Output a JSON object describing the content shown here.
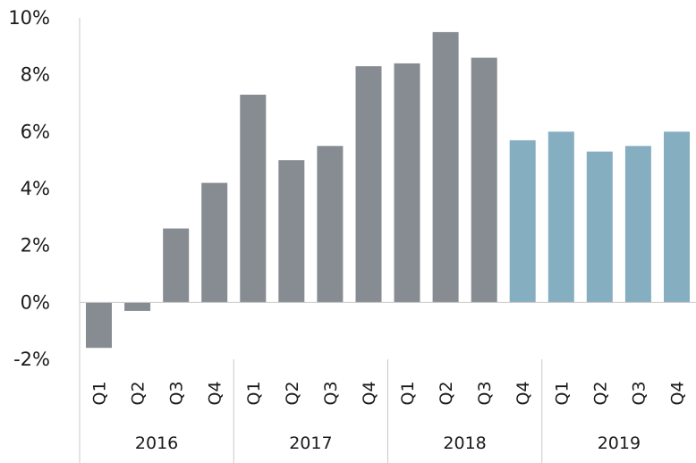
{
  "chart_data": {
    "type": "bar",
    "title": "",
    "xlabel": "",
    "ylabel": "",
    "ylim": [
      -2,
      10
    ],
    "yticks": [
      -2,
      0,
      2,
      4,
      6,
      8,
      10
    ],
    "ytick_labels": [
      "-2%",
      "0%",
      "2%",
      "4%",
      "6%",
      "8%",
      "10%"
    ],
    "grid": false,
    "legend": "none",
    "categories": [
      "Q1",
      "Q2",
      "Q3",
      "Q4",
      "Q1",
      "Q2",
      "Q3",
      "Q4",
      "Q1",
      "Q2",
      "Q3",
      "Q4",
      "Q1",
      "Q2",
      "Q3",
      "Q4"
    ],
    "years": [
      "2016",
      "2017",
      "2018",
      "2019"
    ],
    "values": [
      -1.6,
      -0.3,
      2.6,
      4.2,
      7.3,
      5.0,
      5.5,
      8.3,
      8.4,
      9.5,
      8.6,
      5.7,
      6.0,
      5.3,
      5.5,
      6.0
    ],
    "bar_colors": [
      "#878c92",
      "#878c92",
      "#878c92",
      "#878c92",
      "#878c92",
      "#878c92",
      "#878c92",
      "#878c92",
      "#878c92",
      "#878c92",
      "#878c92",
      "#86aec1",
      "#86aec1",
      "#86aec1",
      "#86aec1",
      "#86aec1"
    ]
  },
  "colors": {
    "actual": "#878c92",
    "forecast": "#86aec1",
    "axis": "#c8c8c8",
    "text": "#1a1a1a"
  }
}
